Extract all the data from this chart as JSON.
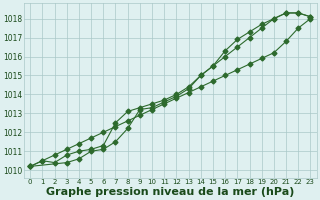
{
  "x": [
    0,
    1,
    2,
    3,
    4,
    5,
    6,
    7,
    8,
    9,
    10,
    11,
    12,
    13,
    14,
    15,
    16,
    17,
    18,
    19,
    20,
    21,
    22,
    23
  ],
  "line_straight": [
    1010.2,
    1010.5,
    1010.8,
    1011.1,
    1011.4,
    1011.7,
    1012.0,
    1012.3,
    1012.6,
    1012.9,
    1013.2,
    1013.5,
    1013.8,
    1014.1,
    1014.4,
    1014.7,
    1015.0,
    1015.3,
    1015.6,
    1015.9,
    1016.2,
    1016.8,
    1017.5,
    1018.0
  ],
  "line_upper": [
    1010.2,
    1010.5,
    1010.4,
    1010.8,
    1011.0,
    1011.1,
    1011.3,
    1012.5,
    1013.1,
    1013.3,
    1013.5,
    1013.7,
    1014.0,
    1014.4,
    1015.0,
    1015.5,
    1016.0,
    1016.5,
    1017.0,
    1017.5,
    1018.0,
    1018.3,
    1018.3,
    1018.1
  ],
  "line_lower": [
    1010.2,
    null,
    null,
    1010.4,
    1010.6,
    1011.0,
    1011.1,
    1011.5,
    1012.2,
    1013.2,
    1013.3,
    1013.6,
    1013.9,
    1014.3,
    1015.0,
    1015.5,
    1016.3,
    1016.9,
    1017.3,
    1017.7,
    1018.0,
    1018.3,
    1018.3,
    1018.1
  ],
  "bg_color": "#dff0f0",
  "line_color": "#2d6a2d",
  "grid_color": "#aac8c8",
  "text_color": "#1a4a1a",
  "ylabel_values": [
    1010,
    1011,
    1012,
    1013,
    1014,
    1015,
    1016,
    1017,
    1018
  ],
  "ylim": [
    1009.6,
    1018.8
  ],
  "xlim": [
    -0.5,
    23.5
  ],
  "xlabel": "Graphe pression niveau de la mer (hPa)",
  "xlabel_fontsize": 8
}
